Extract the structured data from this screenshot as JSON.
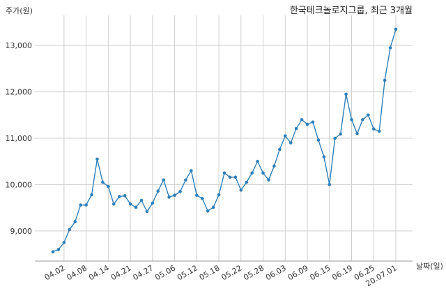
{
  "chart_data": {
    "type": "line",
    "title": "한국테크놀로지그룹, 최근 3개월",
    "ylabel": "주가(원)",
    "xlabel": "날짜(일)",
    "ylim": [
      8350,
      13650
    ],
    "yticks": [
      9000,
      10000,
      11000,
      12000,
      13000
    ],
    "ytick_labels": [
      "9,000",
      "10,000",
      "11,000",
      "12,000",
      "13,000"
    ],
    "xtick_labels": [
      "04.02",
      "04.08",
      "04.14",
      "04.21",
      "04.27",
      "05.06",
      "05.12",
      "05.18",
      "05.22",
      "05.28",
      "06.03",
      "06.09",
      "06.15",
      "06.19",
      "06.25",
      "20.07.01"
    ],
    "xtick_positions": [
      2,
      6,
      10,
      14,
      18,
      22,
      26,
      30,
      34,
      38,
      42,
      46,
      50,
      54,
      58,
      62
    ],
    "grid": true,
    "color": "#2f7fb8",
    "values": [
      8550,
      8600,
      8750,
      9030,
      9200,
      9560,
      9560,
      9780,
      10550,
      10050,
      9960,
      9580,
      9740,
      9760,
      9580,
      9510,
      9660,
      9420,
      9600,
      9860,
      10100,
      9730,
      9770,
      9850,
      10100,
      10300,
      9770,
      9700,
      9430,
      9510,
      9780,
      10250,
      10160,
      10160,
      9880,
      10050,
      10250,
      10500,
      10250,
      10100,
      10400,
      10760,
      11050,
      10900,
      11210,
      11400,
      11300,
      11350,
      10960,
      10600,
      10000,
      11000,
      11090,
      11950,
      11400,
      11100,
      11400,
      11500,
      11200,
      11150,
      12250,
      12950,
      13350
    ]
  }
}
